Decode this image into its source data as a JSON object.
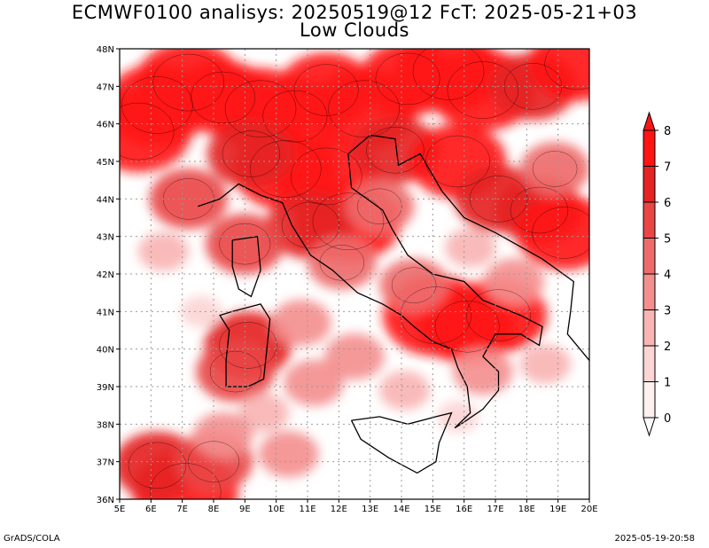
{
  "title_line1": "ECMWF0100 analisys: 20250519@12 FcT: 2025-05-21+03",
  "title_line2": "Low Clouds",
  "footer_left": "GrADS/COLA",
  "footer_right": "2025-05-19-20:58",
  "chart_data": {
    "type": "heatmap",
    "title": "Low Clouds",
    "x_ticks": [
      "5E",
      "6E",
      "7E",
      "8E",
      "9E",
      "10E",
      "11E",
      "12E",
      "13E",
      "14E",
      "15E",
      "16E",
      "17E",
      "18E",
      "19E",
      "20E"
    ],
    "y_ticks": [
      "36N",
      "37N",
      "38N",
      "39N",
      "40N",
      "41N",
      "42N",
      "43N",
      "44N",
      "45N",
      "46N",
      "47N",
      "48N"
    ],
    "xlim": [
      5,
      20
    ],
    "ylim": [
      36,
      48
    ],
    "grid": true,
    "colorbar": {
      "levels": [
        0,
        1,
        2,
        3,
        4,
        5,
        6,
        7,
        8
      ],
      "colors": [
        "#fff0f0",
        "#fcd5d5",
        "#f9b4b4",
        "#f48f8f",
        "#ef6b6b",
        "#ea4646",
        "#e52323",
        "#ff1414"
      ]
    },
    "cloud_cells": [
      {
        "lon": 6.2,
        "lat": 46.5,
        "v": 8
      },
      {
        "lon": 5.6,
        "lat": 45.8,
        "v": 8
      },
      {
        "lon": 7.2,
        "lat": 47.1,
        "v": 8
      },
      {
        "lon": 8.3,
        "lat": 46.7,
        "v": 7
      },
      {
        "lon": 9.5,
        "lat": 46.4,
        "v": 8
      },
      {
        "lon": 10.6,
        "lat": 46.2,
        "v": 7
      },
      {
        "lon": 11.6,
        "lat": 46.9,
        "v": 7
      },
      {
        "lon": 12.8,
        "lat": 46.4,
        "v": 8
      },
      {
        "lon": 14.2,
        "lat": 47.2,
        "v": 7
      },
      {
        "lon": 15.5,
        "lat": 47.4,
        "v": 8
      },
      {
        "lon": 16.6,
        "lat": 46.9,
        "v": 8
      },
      {
        "lon": 18.2,
        "lat": 47.0,
        "v": 6
      },
      {
        "lon": 19.6,
        "lat": 47.6,
        "v": 7
      },
      {
        "lon": 10.3,
        "lat": 44.8,
        "v": 8
      },
      {
        "lon": 11.6,
        "lat": 44.6,
        "v": 8
      },
      {
        "lon": 9.2,
        "lat": 45.2,
        "v": 6
      },
      {
        "lon": 12.3,
        "lat": 43.4,
        "v": 8
      },
      {
        "lon": 11.1,
        "lat": 43.3,
        "v": 6
      },
      {
        "lon": 13.8,
        "lat": 45.3,
        "v": 6
      },
      {
        "lon": 15.8,
        "lat": 45.0,
        "v": 7
      },
      {
        "lon": 17.1,
        "lat": 44.0,
        "v": 6
      },
      {
        "lon": 18.4,
        "lat": 43.7,
        "v": 6
      },
      {
        "lon": 19.2,
        "lat": 43.1,
        "v": 7
      },
      {
        "lon": 7.2,
        "lat": 44.0,
        "v": 5
      },
      {
        "lon": 9.0,
        "lat": 42.8,
        "v": 5
      },
      {
        "lon": 15.1,
        "lat": 40.9,
        "v": 8
      },
      {
        "lon": 16.1,
        "lat": 40.6,
        "v": 7
      },
      {
        "lon": 17.1,
        "lat": 40.9,
        "v": 7
      },
      {
        "lon": 9.1,
        "lat": 40.1,
        "v": 6
      },
      {
        "lon": 8.7,
        "lat": 39.4,
        "v": 5
      },
      {
        "lon": 7.1,
        "lat": 36.2,
        "v": 8
      },
      {
        "lon": 6.2,
        "lat": 36.9,
        "v": 6
      },
      {
        "lon": 8.0,
        "lat": 37.0,
        "v": 5
      },
      {
        "lon": 13.3,
        "lat": 43.8,
        "v": 4
      },
      {
        "lon": 12.1,
        "lat": 42.3,
        "v": 4
      },
      {
        "lon": 14.4,
        "lat": 41.7,
        "v": 4
      },
      {
        "lon": 10.8,
        "lat": 40.7,
        "v": 3
      },
      {
        "lon": 12.5,
        "lat": 39.8,
        "v": 3
      },
      {
        "lon": 11.2,
        "lat": 39.1,
        "v": 3
      },
      {
        "lon": 9.6,
        "lat": 38.3,
        "v": 2
      },
      {
        "lon": 8.3,
        "lat": 37.7,
        "v": 3
      },
      {
        "lon": 10.4,
        "lat": 37.2,
        "v": 3
      },
      {
        "lon": 16.6,
        "lat": 39.4,
        "v": 3
      },
      {
        "lon": 18.6,
        "lat": 39.6,
        "v": 2
      },
      {
        "lon": 17.6,
        "lat": 41.8,
        "v": 3
      },
      {
        "lon": 18.9,
        "lat": 44.8,
        "v": 4
      },
      {
        "lon": 16.2,
        "lat": 42.7,
        "v": 2
      },
      {
        "lon": 6.4,
        "lat": 42.6,
        "v": 2
      },
      {
        "lon": 7.6,
        "lat": 41.0,
        "v": 1
      },
      {
        "lon": 14.1,
        "lat": 38.9,
        "v": 2
      },
      {
        "lon": 15.8,
        "lat": 38.2,
        "v": 1
      }
    ]
  }
}
